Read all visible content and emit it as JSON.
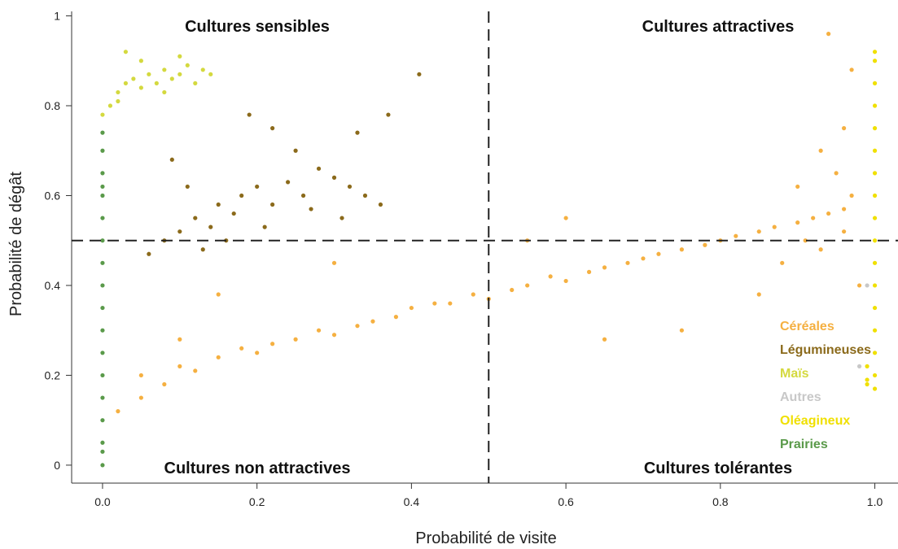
{
  "chart_data": {
    "type": "scatter",
    "xlabel": "Probabilité de visite",
    "ylabel": "Probabilité de dégât",
    "xlim": [
      -0.04,
      1.03
    ],
    "ylim": [
      -0.04,
      1.01
    ],
    "x_ticks": [
      "0.0",
      "0.2",
      "0.4",
      "0.6",
      "0.8",
      "1.0"
    ],
    "y_ticks": [
      "0",
      "0.2",
      "0.4",
      "0.6",
      "0.8",
      "1"
    ],
    "reference_lines": {
      "vertical_x": 0.5,
      "horizontal_y": 0.5,
      "style": "dashed"
    },
    "quadrant_labels": {
      "top_left": "Cultures sensibles",
      "top_right": "Cultures attractives",
      "bottom_left": "Cultures non attractives",
      "bottom_right": "Cultures tolérantes"
    },
    "legend_placement": "bottom-right",
    "series": [
      {
        "name": "Céréales",
        "color": "#f5b041",
        "points": [
          [
            0.02,
            0.12
          ],
          [
            0.05,
            0.15
          ],
          [
            0.08,
            0.18
          ],
          [
            0.1,
            0.22
          ],
          [
            0.12,
            0.21
          ],
          [
            0.15,
            0.24
          ],
          [
            0.18,
            0.26
          ],
          [
            0.2,
            0.25
          ],
          [
            0.22,
            0.27
          ],
          [
            0.25,
            0.28
          ],
          [
            0.28,
            0.3
          ],
          [
            0.3,
            0.29
          ],
          [
            0.33,
            0.31
          ],
          [
            0.35,
            0.32
          ],
          [
            0.38,
            0.33
          ],
          [
            0.4,
            0.35
          ],
          [
            0.43,
            0.36
          ],
          [
            0.45,
            0.36
          ],
          [
            0.48,
            0.38
          ],
          [
            0.5,
            0.37
          ],
          [
            0.53,
            0.39
          ],
          [
            0.55,
            0.4
          ],
          [
            0.58,
            0.42
          ],
          [
            0.6,
            0.41
          ],
          [
            0.63,
            0.43
          ],
          [
            0.65,
            0.44
          ],
          [
            0.68,
            0.45
          ],
          [
            0.7,
            0.46
          ],
          [
            0.72,
            0.47
          ],
          [
            0.75,
            0.48
          ],
          [
            0.78,
            0.49
          ],
          [
            0.8,
            0.5
          ],
          [
            0.82,
            0.51
          ],
          [
            0.85,
            0.52
          ],
          [
            0.87,
            0.53
          ],
          [
            0.9,
            0.54
          ],
          [
            0.92,
            0.55
          ],
          [
            0.94,
            0.56
          ],
          [
            0.96,
            0.57
          ],
          [
            0.97,
            0.6
          ],
          [
            0.95,
            0.65
          ],
          [
            0.93,
            0.7
          ],
          [
            0.96,
            0.75
          ],
          [
            0.97,
            0.88
          ],
          [
            0.94,
            0.96
          ],
          [
            0.98,
            0.4
          ],
          [
            0.85,
            0.38
          ],
          [
            0.75,
            0.3
          ],
          [
            0.65,
            0.28
          ],
          [
            0.6,
            0.55
          ],
          [
            0.55,
            0.5
          ],
          [
            0.3,
            0.45
          ],
          [
            0.15,
            0.38
          ],
          [
            0.1,
            0.28
          ],
          [
            0.05,
            0.2
          ],
          [
            0.88,
            0.45
          ],
          [
            0.9,
            0.62
          ],
          [
            0.91,
            0.5
          ],
          [
            0.96,
            0.52
          ],
          [
            0.93,
            0.48
          ]
        ]
      },
      {
        "name": "Légumineuses",
        "color": "#8b6a1b",
        "points": [
          [
            0.06,
            0.47
          ],
          [
            0.08,
            0.5
          ],
          [
            0.1,
            0.52
          ],
          [
            0.12,
            0.55
          ],
          [
            0.14,
            0.53
          ],
          [
            0.15,
            0.58
          ],
          [
            0.17,
            0.56
          ],
          [
            0.18,
            0.6
          ],
          [
            0.2,
            0.62
          ],
          [
            0.22,
            0.58
          ],
          [
            0.24,
            0.63
          ],
          [
            0.26,
            0.6
          ],
          [
            0.28,
            0.66
          ],
          [
            0.3,
            0.64
          ],
          [
            0.32,
            0.62
          ],
          [
            0.34,
            0.6
          ],
          [
            0.36,
            0.58
          ],
          [
            0.25,
            0.7
          ],
          [
            0.22,
            0.75
          ],
          [
            0.19,
            0.78
          ],
          [
            0.09,
            0.68
          ],
          [
            0.11,
            0.62
          ],
          [
            0.13,
            0.48
          ],
          [
            0.16,
            0.5
          ],
          [
            0.21,
            0.53
          ],
          [
            0.31,
            0.55
          ],
          [
            0.33,
            0.74
          ],
          [
            0.37,
            0.78
          ],
          [
            0.41,
            0.87
          ],
          [
            0.27,
            0.57
          ]
        ]
      },
      {
        "name": "Maïs",
        "color": "#d4d93f",
        "points": [
          [
            0.0,
            0.78
          ],
          [
            0.01,
            0.8
          ],
          [
            0.02,
            0.83
          ],
          [
            0.03,
            0.85
          ],
          [
            0.04,
            0.86
          ],
          [
            0.05,
            0.84
          ],
          [
            0.06,
            0.87
          ],
          [
            0.07,
            0.85
          ],
          [
            0.08,
            0.88
          ],
          [
            0.09,
            0.86
          ],
          [
            0.1,
            0.87
          ],
          [
            0.11,
            0.89
          ],
          [
            0.12,
            0.85
          ],
          [
            0.13,
            0.88
          ],
          [
            0.05,
            0.9
          ],
          [
            0.03,
            0.92
          ],
          [
            0.08,
            0.83
          ],
          [
            0.1,
            0.91
          ],
          [
            0.14,
            0.87
          ],
          [
            0.02,
            0.81
          ]
        ]
      },
      {
        "name": "Autres",
        "color": "#c8c8c8",
        "points": [
          [
            0.99,
            0.4
          ],
          [
            0.98,
            0.22
          ]
        ]
      },
      {
        "name": "Oléagineux",
        "color": "#f0e000",
        "points": [
          [
            1.0,
            0.17
          ],
          [
            1.0,
            0.2
          ],
          [
            1.0,
            0.25
          ],
          [
            1.0,
            0.3
          ],
          [
            1.0,
            0.35
          ],
          [
            1.0,
            0.4
          ],
          [
            1.0,
            0.45
          ],
          [
            1.0,
            0.5
          ],
          [
            1.0,
            0.55
          ],
          [
            1.0,
            0.6
          ],
          [
            1.0,
            0.65
          ],
          [
            1.0,
            0.7
          ],
          [
            1.0,
            0.75
          ],
          [
            1.0,
            0.8
          ],
          [
            1.0,
            0.85
          ],
          [
            1.0,
            0.9
          ],
          [
            0.99,
            0.18
          ],
          [
            0.99,
            0.22
          ],
          [
            1.0,
            0.92
          ],
          [
            0.99,
            0.19
          ]
        ]
      },
      {
        "name": "Prairies",
        "color": "#5a9a4a",
        "points": [
          [
            0.0,
            0.0
          ],
          [
            0.0,
            0.05
          ],
          [
            0.0,
            0.1
          ],
          [
            0.0,
            0.15
          ],
          [
            0.0,
            0.2
          ],
          [
            0.0,
            0.25
          ],
          [
            0.0,
            0.3
          ],
          [
            0.0,
            0.35
          ],
          [
            0.0,
            0.4
          ],
          [
            0.0,
            0.45
          ],
          [
            0.0,
            0.5
          ],
          [
            0.0,
            0.55
          ],
          [
            0.0,
            0.6
          ],
          [
            0.0,
            0.65
          ],
          [
            0.0,
            0.7
          ],
          [
            0.0,
            0.74
          ],
          [
            0.0,
            0.03
          ],
          [
            0.0,
            0.62
          ]
        ]
      }
    ]
  }
}
